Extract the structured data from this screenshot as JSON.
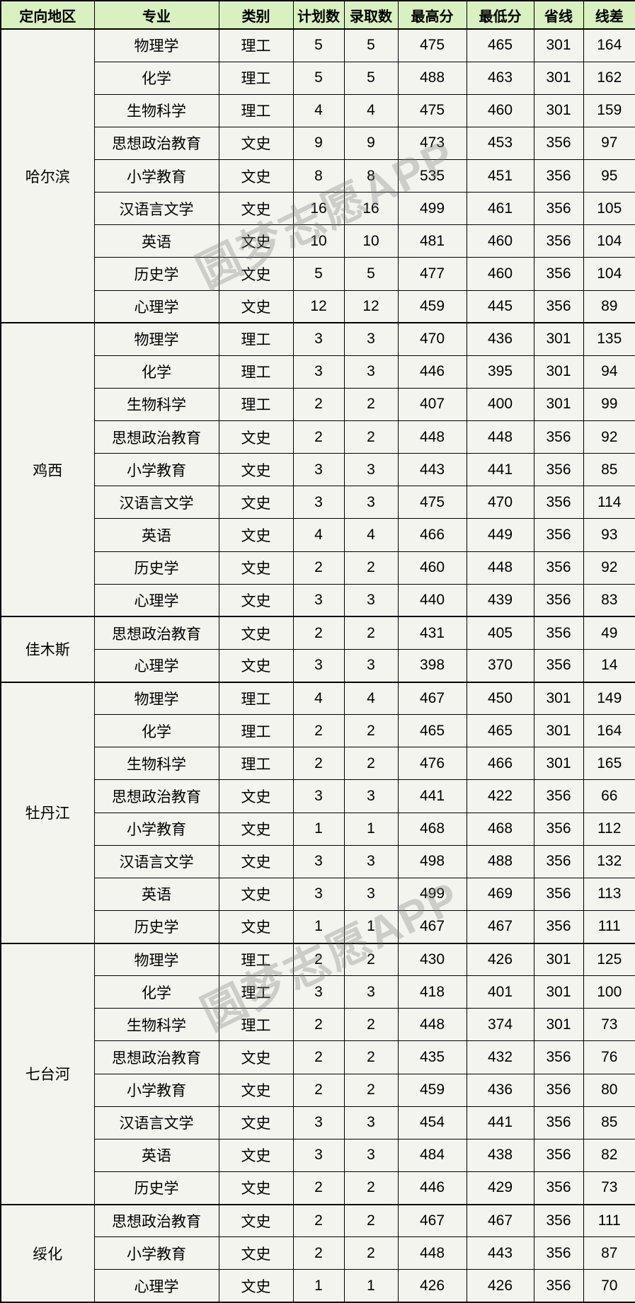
{
  "watermark": {
    "text": "圆梦志愿APP"
  },
  "colors": {
    "header_bg": "#d9f1c0",
    "row_bg": "#f4f4ef",
    "border": "#000000"
  },
  "chart_data": {
    "type": "table",
    "columns": [
      "定向地区",
      "专业",
      "类别",
      "计划数",
      "录取数",
      "最高分",
      "最低分",
      "省线",
      "线差"
    ],
    "sections": [
      {
        "region": "哈尔滨",
        "rows": [
          [
            "物理学",
            "理工",
            5,
            5,
            475,
            465,
            301,
            164
          ],
          [
            "化学",
            "理工",
            5,
            5,
            488,
            463,
            301,
            162
          ],
          [
            "生物科学",
            "理工",
            4,
            4,
            475,
            460,
            301,
            159
          ],
          [
            "思想政治教育",
            "文史",
            9,
            9,
            473,
            453,
            356,
            97
          ],
          [
            "小学教育",
            "文史",
            8,
            8,
            535,
            451,
            356,
            95
          ],
          [
            "汉语言文学",
            "文史",
            16,
            16,
            499,
            461,
            356,
            105
          ],
          [
            "英语",
            "文史",
            10,
            10,
            481,
            460,
            356,
            104
          ],
          [
            "历史学",
            "文史",
            5,
            5,
            477,
            460,
            356,
            104
          ],
          [
            "心理学",
            "文史",
            12,
            12,
            459,
            445,
            356,
            89
          ]
        ]
      },
      {
        "region": "鸡西",
        "rows": [
          [
            "物理学",
            "理工",
            3,
            3,
            470,
            436,
            301,
            135
          ],
          [
            "化学",
            "理工",
            3,
            3,
            446,
            395,
            301,
            94
          ],
          [
            "生物科学",
            "理工",
            2,
            2,
            407,
            400,
            301,
            99
          ],
          [
            "思想政治教育",
            "文史",
            2,
            2,
            448,
            448,
            356,
            92
          ],
          [
            "小学教育",
            "文史",
            3,
            3,
            443,
            441,
            356,
            85
          ],
          [
            "汉语言文学",
            "文史",
            3,
            3,
            475,
            470,
            356,
            114
          ],
          [
            "英语",
            "文史",
            4,
            4,
            466,
            449,
            356,
            93
          ],
          [
            "历史学",
            "文史",
            2,
            2,
            460,
            448,
            356,
            92
          ],
          [
            "心理学",
            "文史",
            3,
            3,
            440,
            439,
            356,
            83
          ]
        ]
      },
      {
        "region": "佳木斯",
        "rows": [
          [
            "思想政治教育",
            "文史",
            2,
            2,
            431,
            405,
            356,
            49
          ],
          [
            "心理学",
            "文史",
            3,
            3,
            398,
            370,
            356,
            14
          ]
        ]
      },
      {
        "region": "牡丹江",
        "rows": [
          [
            "物理学",
            "理工",
            4,
            4,
            467,
            450,
            301,
            149
          ],
          [
            "化学",
            "理工",
            2,
            2,
            465,
            465,
            301,
            164
          ],
          [
            "生物科学",
            "理工",
            2,
            2,
            476,
            466,
            301,
            165
          ],
          [
            "思想政治教育",
            "文史",
            3,
            3,
            441,
            422,
            356,
            66
          ],
          [
            "小学教育",
            "文史",
            1,
            1,
            468,
            468,
            356,
            112
          ],
          [
            "汉语言文学",
            "文史",
            3,
            3,
            498,
            488,
            356,
            132
          ],
          [
            "英语",
            "文史",
            3,
            3,
            499,
            469,
            356,
            113
          ],
          [
            "历史学",
            "文史",
            1,
            1,
            467,
            467,
            356,
            111
          ]
        ]
      },
      {
        "region": "七台河",
        "rows": [
          [
            "物理学",
            "理工",
            2,
            2,
            430,
            426,
            301,
            125
          ],
          [
            "化学",
            "理工",
            3,
            3,
            418,
            401,
            301,
            100
          ],
          [
            "生物科学",
            "理工",
            2,
            2,
            448,
            374,
            301,
            73
          ],
          [
            "思想政治教育",
            "文史",
            2,
            2,
            435,
            432,
            356,
            76
          ],
          [
            "小学教育",
            "文史",
            2,
            2,
            459,
            436,
            356,
            80
          ],
          [
            "汉语言文学",
            "文史",
            3,
            3,
            454,
            441,
            356,
            85
          ],
          [
            "英语",
            "文史",
            3,
            3,
            484,
            438,
            356,
            82
          ],
          [
            "历史学",
            "文史",
            2,
            2,
            446,
            429,
            356,
            73
          ]
        ]
      },
      {
        "region": "绥化",
        "rows": [
          [
            "思想政治教育",
            "文史",
            2,
            2,
            467,
            467,
            356,
            111
          ],
          [
            "小学教育",
            "文史",
            2,
            2,
            448,
            443,
            356,
            87
          ],
          [
            "心理学",
            "文史",
            1,
            1,
            426,
            426,
            356,
            70
          ]
        ]
      }
    ]
  }
}
